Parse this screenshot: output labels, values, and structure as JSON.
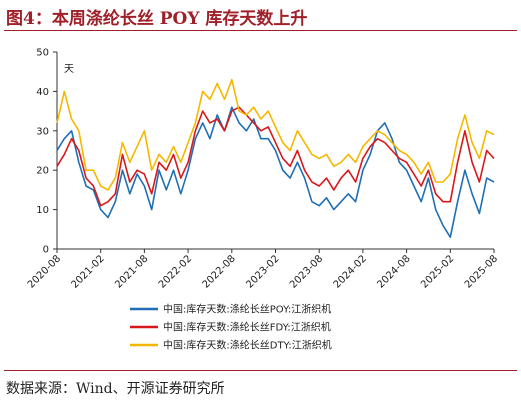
{
  "figure": {
    "title": "图4：本周涤纶长丝 POY 库存天数上升",
    "source": "数据来源：Wind、开源证券研究所"
  },
  "chart_data": {
    "type": "line",
    "ylabel": "天",
    "ylim": [
      0,
      50
    ],
    "yticks": [
      0,
      10,
      20,
      30,
      40,
      50
    ],
    "xticks": [
      "2020-08",
      "2021-02",
      "2021-08",
      "2022-02",
      "2022-08",
      "2023-02",
      "2023-08",
      "2024-02",
      "2024-08",
      "2025-02",
      "2025-08"
    ],
    "xlim": [
      "2020-08",
      "2025-08"
    ],
    "legend_position": "bottom",
    "grid": false,
    "series": [
      {
        "name": "中国:库存天数:涤纶长丝POY:江浙织机",
        "color": "#1f6fb4",
        "points": [
          [
            "2020-08",
            25
          ],
          [
            "2020-09",
            28
          ],
          [
            "2020-10",
            30
          ],
          [
            "2020-11",
            22
          ],
          [
            "2020-12",
            16
          ],
          [
            "2021-01",
            15
          ],
          [
            "2021-02",
            10
          ],
          [
            "2021-03",
            8
          ],
          [
            "2021-04",
            12
          ],
          [
            "2021-05",
            20
          ],
          [
            "2021-06",
            14
          ],
          [
            "2021-07",
            19
          ],
          [
            "2021-08",
            16
          ],
          [
            "2021-09",
            10
          ],
          [
            "2021-10",
            20
          ],
          [
            "2021-11",
            15
          ],
          [
            "2021-12",
            20
          ],
          [
            "2022-01",
            14
          ],
          [
            "2022-02",
            20
          ],
          [
            "2022-03",
            28
          ],
          [
            "2022-04",
            32
          ],
          [
            "2022-05",
            28
          ],
          [
            "2022-06",
            34
          ],
          [
            "2022-07",
            30
          ],
          [
            "2022-08",
            36
          ],
          [
            "2022-09",
            32
          ],
          [
            "2022-10",
            30
          ],
          [
            "2022-11",
            33
          ],
          [
            "2022-12",
            28
          ],
          [
            "2023-01",
            28
          ],
          [
            "2023-02",
            25
          ],
          [
            "2023-03",
            20
          ],
          [
            "2023-04",
            18
          ],
          [
            "2023-05",
            22
          ],
          [
            "2023-06",
            18
          ],
          [
            "2023-07",
            12
          ],
          [
            "2023-08",
            11
          ],
          [
            "2023-09",
            13
          ],
          [
            "2023-10",
            10
          ],
          [
            "2023-11",
            12
          ],
          [
            "2023-12",
            14
          ],
          [
            "2024-01",
            12
          ],
          [
            "2024-02",
            20
          ],
          [
            "2024-03",
            24
          ],
          [
            "2024-04",
            30
          ],
          [
            "2024-05",
            32
          ],
          [
            "2024-06",
            28
          ],
          [
            "2024-07",
            22
          ],
          [
            "2024-08",
            20
          ],
          [
            "2024-09",
            16
          ],
          [
            "2024-10",
            12
          ],
          [
            "2024-11",
            18
          ],
          [
            "2024-12",
            10
          ],
          [
            "2025-01",
            6
          ],
          [
            "2025-02",
            3
          ],
          [
            "2025-03",
            12
          ],
          [
            "2025-04",
            20
          ],
          [
            "2025-05",
            14
          ],
          [
            "2025-06",
            9
          ],
          [
            "2025-07",
            18
          ],
          [
            "2025-08",
            17
          ]
        ]
      },
      {
        "name": "中国:库存天数:涤纶长丝FDY:江浙织机",
        "color": "#d7191c",
        "points": [
          [
            "2020-08",
            21
          ],
          [
            "2020-09",
            24
          ],
          [
            "2020-10",
            28
          ],
          [
            "2020-11",
            25
          ],
          [
            "2020-12",
            18
          ],
          [
            "2021-01",
            16
          ],
          [
            "2021-02",
            11
          ],
          [
            "2021-03",
            12
          ],
          [
            "2021-04",
            14
          ],
          [
            "2021-05",
            24
          ],
          [
            "2021-06",
            17
          ],
          [
            "2021-07",
            20
          ],
          [
            "2021-08",
            19
          ],
          [
            "2021-09",
            14
          ],
          [
            "2021-10",
            22
          ],
          [
            "2021-11",
            20
          ],
          [
            "2021-12",
            24
          ],
          [
            "2022-01",
            18
          ],
          [
            "2022-02",
            22
          ],
          [
            "2022-03",
            30
          ],
          [
            "2022-04",
            35
          ],
          [
            "2022-05",
            32
          ],
          [
            "2022-06",
            33
          ],
          [
            "2022-07",
            30
          ],
          [
            "2022-08",
            35
          ],
          [
            "2022-09",
            36
          ],
          [
            "2022-10",
            34
          ],
          [
            "2022-11",
            32
          ],
          [
            "2022-12",
            30
          ],
          [
            "2023-01",
            31
          ],
          [
            "2023-02",
            27
          ],
          [
            "2023-03",
            23
          ],
          [
            "2023-04",
            21
          ],
          [
            "2023-05",
            25
          ],
          [
            "2023-06",
            20
          ],
          [
            "2023-07",
            17
          ],
          [
            "2023-08",
            16
          ],
          [
            "2023-09",
            18
          ],
          [
            "2023-10",
            15
          ],
          [
            "2023-11",
            18
          ],
          [
            "2023-12",
            20
          ],
          [
            "2024-01",
            17
          ],
          [
            "2024-02",
            23
          ],
          [
            "2024-03",
            26
          ],
          [
            "2024-04",
            28
          ],
          [
            "2024-05",
            27
          ],
          [
            "2024-06",
            25
          ],
          [
            "2024-07",
            23
          ],
          [
            "2024-08",
            22
          ],
          [
            "2024-09",
            19
          ],
          [
            "2024-10",
            16
          ],
          [
            "2024-11",
            20
          ],
          [
            "2024-12",
            14
          ],
          [
            "2025-01",
            12
          ],
          [
            "2025-02",
            12
          ],
          [
            "2025-03",
            22
          ],
          [
            "2025-04",
            30
          ],
          [
            "2025-05",
            22
          ],
          [
            "2025-06",
            17
          ],
          [
            "2025-07",
            25
          ],
          [
            "2025-08",
            23
          ]
        ]
      },
      {
        "name": "中国:库存天数:涤纶长丝DTY:江浙织机",
        "color": "#f5b800",
        "points": [
          [
            "2020-08",
            32
          ],
          [
            "2020-09",
            40
          ],
          [
            "2020-10",
            33
          ],
          [
            "2020-11",
            30
          ],
          [
            "2020-12",
            20
          ],
          [
            "2021-01",
            20
          ],
          [
            "2021-02",
            16
          ],
          [
            "2021-03",
            15
          ],
          [
            "2021-04",
            18
          ],
          [
            "2021-05",
            27
          ],
          [
            "2021-06",
            22
          ],
          [
            "2021-07",
            26
          ],
          [
            "2021-08",
            30
          ],
          [
            "2021-09",
            20
          ],
          [
            "2021-10",
            24
          ],
          [
            "2021-11",
            22
          ],
          [
            "2021-12",
            26
          ],
          [
            "2022-01",
            22
          ],
          [
            "2022-02",
            27
          ],
          [
            "2022-03",
            32
          ],
          [
            "2022-04",
            40
          ],
          [
            "2022-05",
            38
          ],
          [
            "2022-06",
            42
          ],
          [
            "2022-07",
            38
          ],
          [
            "2022-08",
            43
          ],
          [
            "2022-09",
            35
          ],
          [
            "2022-10",
            34
          ],
          [
            "2022-11",
            36
          ],
          [
            "2022-12",
            33
          ],
          [
            "2023-01",
            35
          ],
          [
            "2023-02",
            31
          ],
          [
            "2023-03",
            27
          ],
          [
            "2023-04",
            25
          ],
          [
            "2023-05",
            30
          ],
          [
            "2023-06",
            27
          ],
          [
            "2023-07",
            24
          ],
          [
            "2023-08",
            23
          ],
          [
            "2023-09",
            24
          ],
          [
            "2023-10",
            21
          ],
          [
            "2023-11",
            22
          ],
          [
            "2023-12",
            24
          ],
          [
            "2024-01",
            22
          ],
          [
            "2024-02",
            26
          ],
          [
            "2024-03",
            28
          ],
          [
            "2024-04",
            30
          ],
          [
            "2024-05",
            29
          ],
          [
            "2024-06",
            27
          ],
          [
            "2024-07",
            25
          ],
          [
            "2024-08",
            24
          ],
          [
            "2024-09",
            22
          ],
          [
            "2024-10",
            19
          ],
          [
            "2024-11",
            22
          ],
          [
            "2024-12",
            17
          ],
          [
            "2025-01",
            17
          ],
          [
            "2025-02",
            19
          ],
          [
            "2025-03",
            28
          ],
          [
            "2025-04",
            34
          ],
          [
            "2025-05",
            27
          ],
          [
            "2025-06",
            23
          ],
          [
            "2025-07",
            30
          ],
          [
            "2025-08",
            29
          ]
        ]
      }
    ]
  }
}
